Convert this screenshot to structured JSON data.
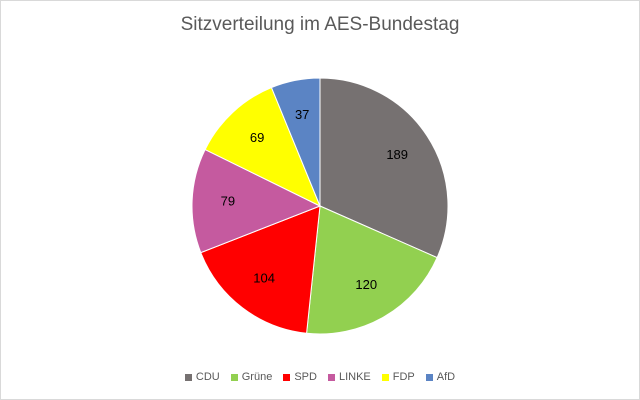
{
  "chart_data": {
    "type": "pie",
    "title": "Sitzverteilung im AES-Bundestag",
    "categories": [
      "CDU",
      "Grüne",
      "SPD",
      "LINKE",
      "FDP",
      "AfD"
    ],
    "values": [
      189,
      120,
      104,
      79,
      69,
      37
    ],
    "colors": [
      "#767171",
      "#92d050",
      "#ff0000",
      "#c55a9f",
      "#ffff00",
      "#5b84c4"
    ],
    "legend_position": "bottom",
    "start_angle_deg": 0,
    "direction": "clockwise"
  }
}
